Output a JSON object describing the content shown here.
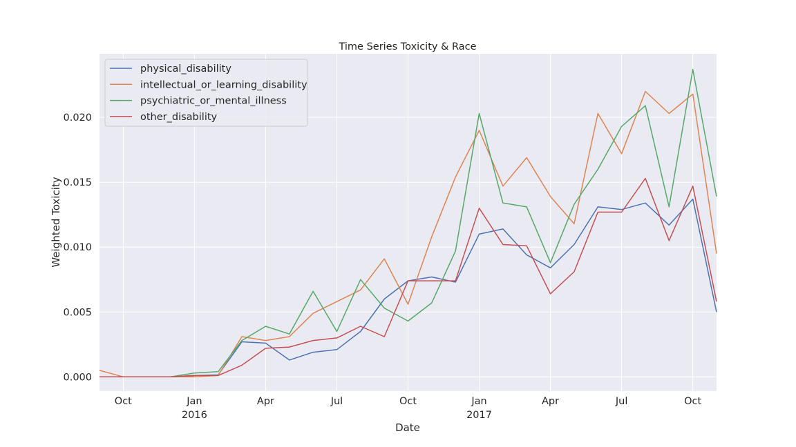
{
  "chart_data": {
    "type": "line",
    "title": "Time Series Toxicity & Race",
    "xlabel": "Date",
    "ylabel": "Weighted Toxicity",
    "x": [
      "2015-09",
      "2015-10",
      "2015-11",
      "2015-12",
      "2016-01",
      "2016-02",
      "2016-03",
      "2016-04",
      "2016-05",
      "2016-06",
      "2016-07",
      "2016-08",
      "2016-09",
      "2016-10",
      "2016-11",
      "2016-12",
      "2017-01",
      "2017-02",
      "2017-03",
      "2017-04",
      "2017-05",
      "2017-06",
      "2017-07",
      "2017-08",
      "2017-09",
      "2017-10",
      "2017-11"
    ],
    "xlim": [
      "2015-09",
      "2017-11"
    ],
    "ylim": [
      -0.0011,
      0.0249
    ],
    "yticks": [
      0.0,
      0.005,
      0.01,
      0.015,
      0.02
    ],
    "ytick_labels": [
      "0.000",
      "0.005",
      "0.010",
      "0.015",
      "0.020"
    ],
    "xticks": [
      {
        "x": "2015-10",
        "label": "Oct"
      },
      {
        "x": "2016-01",
        "label": "Jan",
        "sublabel": "2016"
      },
      {
        "x": "2016-04",
        "label": "Apr"
      },
      {
        "x": "2016-07",
        "label": "Jul"
      },
      {
        "x": "2016-10",
        "label": "Oct"
      },
      {
        "x": "2017-01",
        "label": "Jan",
        "sublabel": "2017"
      },
      {
        "x": "2017-04",
        "label": "Apr"
      },
      {
        "x": "2017-07",
        "label": "Jul"
      },
      {
        "x": "2017-10",
        "label": "Oct"
      }
    ],
    "grid": true,
    "legend_position": "top-left",
    "series": [
      {
        "name": "physical_disability",
        "color": "#4c72b0",
        "values": [
          0.0,
          0.0,
          0.0,
          0.0,
          0.0001,
          0.00015,
          0.0027,
          0.0026,
          0.0013,
          0.0019,
          0.0021,
          0.0035,
          0.006,
          0.0074,
          0.0077,
          0.0073,
          0.011,
          0.0114,
          0.0094,
          0.0084,
          0.0102,
          0.0131,
          0.0129,
          0.0134,
          0.0117,
          0.0137,
          0.005
        ]
      },
      {
        "name": "intellectual_or_learning_disability",
        "color": "#dd8452",
        "values": [
          0.0005,
          0.0,
          0.0,
          0.0,
          0.0,
          0.0001,
          0.0031,
          0.0028,
          0.0031,
          0.0049,
          0.0058,
          0.0067,
          0.0091,
          0.0056,
          0.0108,
          0.0154,
          0.019,
          0.0147,
          0.0169,
          0.0139,
          0.0118,
          0.0203,
          0.0172,
          0.022,
          0.0203,
          0.0218,
          0.0095
        ]
      },
      {
        "name": "psychiatric_or_mental_illness",
        "color": "#55a868",
        "values": [
          0.0,
          0.0,
          0.0,
          0.0,
          0.0003,
          0.0004,
          0.0028,
          0.0039,
          0.0033,
          0.0066,
          0.0035,
          0.0075,
          0.0053,
          0.0043,
          0.0057,
          0.0097,
          0.0203,
          0.0134,
          0.0131,
          0.0088,
          0.0133,
          0.016,
          0.0193,
          0.0209,
          0.0131,
          0.0237,
          0.0139
        ]
      },
      {
        "name": "other_disability",
        "color": "#c44e52",
        "values": [
          0.0,
          0.0,
          0.0,
          0.0,
          0.0001,
          0.0001,
          0.0009,
          0.0022,
          0.0023,
          0.0028,
          0.003,
          0.0039,
          0.0031,
          0.0074,
          0.0074,
          0.0074,
          0.013,
          0.0102,
          0.0101,
          0.0064,
          0.0081,
          0.0127,
          0.0127,
          0.0153,
          0.0105,
          0.0147,
          0.0058
        ]
      }
    ]
  }
}
